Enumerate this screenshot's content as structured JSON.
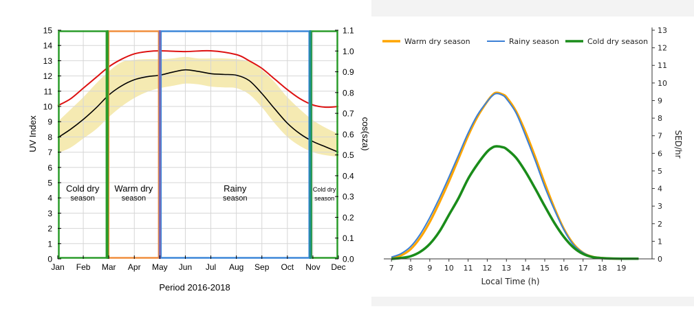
{
  "chart_data": [
    {
      "type": "line",
      "title": "",
      "xlabel": "Period 2016-2018",
      "ylabel_left": "UV Index",
      "ylabel_right": "cos(sza)",
      "x_categories": [
        "Jan",
        "Feb",
        "Mar",
        "Apr",
        "May",
        "Jun",
        "Jul",
        "Aug",
        "Sep",
        "Oct",
        "Nov",
        "Dec"
      ],
      "ylim_left": [
        0,
        15
      ],
      "yticks_left": [
        0,
        1,
        2,
        3,
        4,
        5,
        6,
        7,
        8,
        9,
        10,
        11,
        12,
        13,
        14,
        15
      ],
      "ylim_right": [
        0.0,
        1.1
      ],
      "yticks_right": [
        "0.0",
        "0.1",
        "0.2",
        "0.3",
        "0.4",
        "0.5",
        "0.6",
        "0.7",
        "0.8",
        "0.9",
        "1.0",
        "1.1"
      ],
      "grid": true,
      "series": [
        {
          "role": "cos_sza",
          "color": "#dd1111",
          "x": [
            0,
            0.5,
            1,
            1.5,
            2,
            2.5,
            3,
            3.5,
            4,
            5,
            6,
            7,
            7.5,
            8,
            8.5,
            9,
            9.5,
            10,
            10.5,
            11
          ],
          "values": [
            10.05,
            10.5,
            11.2,
            11.9,
            12.6,
            13.1,
            13.45,
            13.6,
            13.65,
            13.6,
            13.65,
            13.4,
            13.0,
            12.5,
            11.8,
            11.1,
            10.5,
            10.1,
            9.95,
            10.0
          ]
        },
        {
          "role": "uv_index_mean",
          "color": "#000000",
          "x": [
            0,
            0.5,
            1,
            1.5,
            2,
            2.5,
            3,
            3.5,
            4,
            4.5,
            5,
            5.5,
            6,
            6.5,
            7,
            7.5,
            8,
            8.5,
            9,
            9.5,
            10,
            10.5,
            11
          ],
          "values": [
            7.95,
            8.5,
            9.15,
            9.9,
            10.75,
            11.35,
            11.75,
            11.95,
            12.05,
            12.25,
            12.4,
            12.3,
            12.15,
            12.1,
            12.05,
            11.7,
            10.85,
            9.85,
            8.9,
            8.2,
            7.7,
            7.35,
            7.0
          ]
        }
      ],
      "uncertainty_band": {
        "color": "#f5eab2",
        "x": [
          0,
          0.5,
          1,
          1.5,
          2,
          2.5,
          3,
          3.5,
          4,
          4.5,
          5,
          5.5,
          6,
          6.5,
          7,
          7.5,
          8,
          8.5,
          9,
          9.5,
          10,
          10.5,
          11
        ],
        "upper": [
          9.0,
          9.8,
          10.6,
          11.5,
          12.3,
          12.9,
          13.05,
          13.1,
          13.1,
          13.15,
          13.25,
          13.15,
          13.15,
          13.15,
          13.1,
          12.95,
          12.4,
          11.6,
          10.6,
          9.8,
          9.1,
          8.6,
          8.2
        ],
        "lower": [
          6.95,
          7.3,
          7.9,
          8.5,
          9.3,
          10.0,
          10.55,
          10.95,
          11.2,
          11.35,
          11.5,
          11.45,
          11.3,
          11.25,
          11.2,
          10.8,
          9.95,
          8.9,
          8.0,
          7.4,
          7.0,
          6.8,
          6.7
        ]
      },
      "season_boxes": [
        {
          "x_start": 0,
          "x_end": 1.95,
          "color": "#2a9c2a",
          "label_line1": "Cold dry",
          "label_line2": "season"
        },
        {
          "x_start": 1.95,
          "x_end": 4.0,
          "color": "#f08d3c",
          "label_line1": "Warm dry",
          "label_line2": "season"
        },
        {
          "x_start": 4.0,
          "x_end": 9.9,
          "color": "#3b86d8",
          "label_line1": "Rainy",
          "label_line2": "season"
        },
        {
          "x_start": 9.9,
          "x_end": 11,
          "color": "#2a9c2a",
          "label_line1": "Cold dry",
          "label_line2": "season"
        }
      ],
      "season_dividers": [
        {
          "x": 1.95,
          "color": "#2a9c2a"
        },
        {
          "x": 4.0,
          "color": "#7b6ab5"
        },
        {
          "x": 9.9,
          "color": "#1f8f8f"
        }
      ]
    },
    {
      "type": "line",
      "title": "",
      "xlabel": "Local Time (h)",
      "ylabel": "SED/hr",
      "xlim": [
        6.6,
        20.6
      ],
      "xticks": [
        7,
        8,
        9,
        10,
        11,
        12,
        13,
        14,
        15,
        16,
        17,
        18,
        19
      ],
      "ylim": [
        0,
        13
      ],
      "yticks": [
        0,
        1,
        2,
        3,
        4,
        5,
        6,
        7,
        8,
        9,
        10,
        11,
        12,
        13
      ],
      "grid": false,
      "legend_position": "top",
      "series": [
        {
          "name": "Warm dry season",
          "color": "#ffa500",
          "x": [
            7,
            7.5,
            8,
            8.5,
            9,
            9.5,
            10,
            10.5,
            11,
            11.5,
            12,
            12.3,
            12.5,
            12.8,
            13,
            13.5,
            14,
            14.5,
            15,
            15.5,
            16,
            16.5,
            17,
            17.5,
            18,
            18.5,
            19,
            19.5,
            19.9
          ],
          "values": [
            0.05,
            0.2,
            0.55,
            1.2,
            2.1,
            3.2,
            4.4,
            5.7,
            7.0,
            8.1,
            8.95,
            9.35,
            9.45,
            9.35,
            9.2,
            8.4,
            7.2,
            5.8,
            4.3,
            2.9,
            1.7,
            0.85,
            0.35,
            0.12,
            0.05,
            0.02,
            0.01,
            0.01,
            0.01
          ]
        },
        {
          "name": "Rainy season",
          "color": "#3a7fd5",
          "x": [
            7,
            7.5,
            8,
            8.5,
            9,
            9.5,
            10,
            10.5,
            11,
            11.5,
            12,
            12.3,
            12.5,
            12.8,
            13,
            13.5,
            14,
            14.5,
            15,
            15.5,
            16,
            16.5,
            17,
            17.5,
            18,
            18.5,
            19,
            19.5,
            19.9
          ],
          "values": [
            0.1,
            0.3,
            0.7,
            1.4,
            2.35,
            3.45,
            4.65,
            5.9,
            7.15,
            8.2,
            8.95,
            9.3,
            9.4,
            9.3,
            9.1,
            8.3,
            7.0,
            5.6,
            4.1,
            2.8,
            1.65,
            0.8,
            0.35,
            0.12,
            0.04,
            0.02,
            0.01,
            0.01,
            0.01
          ]
        },
        {
          "name": "Cold dry season",
          "color": "#1a8c1a",
          "x": [
            7,
            7.5,
            8,
            8.5,
            9,
            9.5,
            10,
            10.5,
            11,
            11.5,
            12,
            12.3,
            12.5,
            12.8,
            13,
            13.5,
            14,
            14.5,
            15,
            15.5,
            16,
            16.5,
            17,
            17.5,
            18,
            18.5,
            19,
            19.5,
            19.9
          ],
          "values": [
            0.0,
            0.05,
            0.15,
            0.4,
            0.85,
            1.55,
            2.5,
            3.45,
            4.55,
            5.4,
            6.1,
            6.35,
            6.4,
            6.35,
            6.25,
            5.75,
            4.95,
            4.0,
            3.0,
            2.05,
            1.25,
            0.65,
            0.28,
            0.1,
            0.04,
            0.02,
            0.01,
            0.01,
            0.01
          ]
        }
      ]
    }
  ]
}
